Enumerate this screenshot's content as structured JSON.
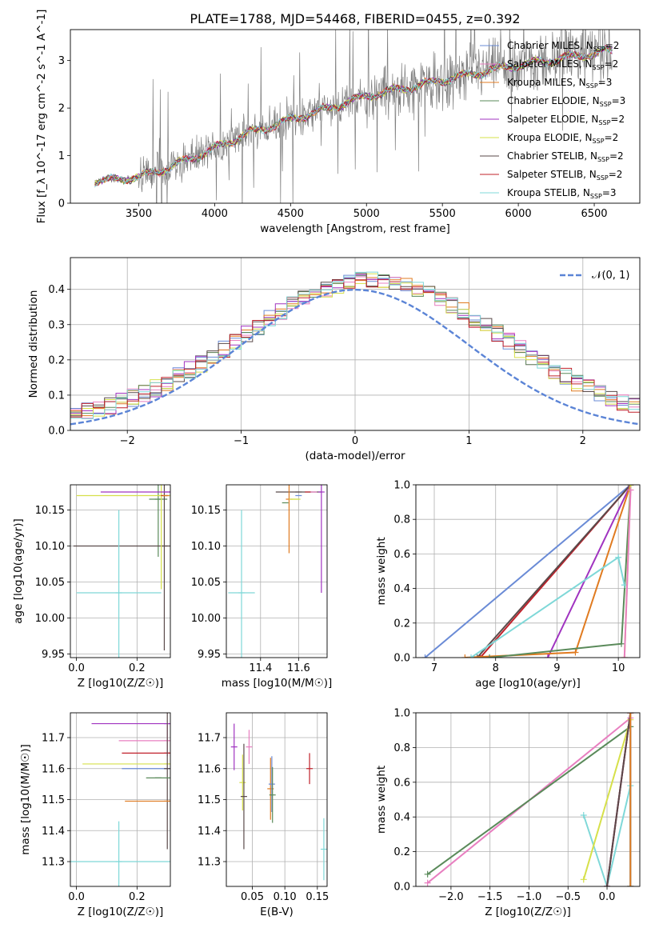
{
  "title": "PLATE=1788, MJD=54468, FIBERID=0455, z=0.392",
  "models": [
    {
      "name": "Chabrier MILES",
      "nssp": "2",
      "color": "#6a8bd6"
    },
    {
      "name": "Salpeter MILES",
      "nssp": "2",
      "color": "#e87fc0"
    },
    {
      "name": "Kroupa MILES",
      "nssp": "3",
      "color": "#e07b20"
    },
    {
      "name": "Chabrier ELODIE",
      "nssp": "3",
      "color": "#5a8a5a"
    },
    {
      "name": "Salpeter ELODIE",
      "nssp": "2",
      "color": "#a033c0"
    },
    {
      "name": "Kroupa ELODIE",
      "nssp": "2",
      "color": "#d6e04a"
    },
    {
      "name": "Chabrier STELIB",
      "nssp": "2",
      "color": "#5a4a4a"
    },
    {
      "name": "Salpeter STELIB",
      "nssp": "2",
      "color": "#c0202a"
    },
    {
      "name": "Kroupa STELIB",
      "nssp": "3",
      "color": "#7fd8d8"
    }
  ],
  "labels": {
    "spec_x": "wavelength [Angstrom, rest frame]",
    "spec_y": "Flux [f_λ 10^-17 erg cm^-2 s^-1 A^-1]",
    "res_x": "(data-model)/error",
    "res_y": "Normed distribution",
    "res_legend": "𝒩(0, 1)",
    "age_y": "age  [log10(age/yr)]",
    "z_x": "Z [log10(Z/Z☉)]",
    "mass_x": "mass [log10(M/M☉)]",
    "mass_y": "mass [log10(M/M☉)]",
    "ebv_x": "E(B-V)",
    "mw_y": "mass weight",
    "mw_age_x": "age  [log10(age/yr)]",
    "mw_z_x": "Z [log10(Z/Z☉)]"
  },
  "chart_data": [
    {
      "type": "line",
      "id": "spectrum",
      "xlim": [
        3050,
        6800
      ],
      "ylim": [
        0,
        3.65
      ],
      "xticks": [
        3500,
        4000,
        4500,
        5000,
        5500,
        6000,
        6500
      ],
      "yticks": [
        0,
        1,
        2,
        3
      ],
      "data_color": "#808080",
      "continuum": {
        "x": [
          3200,
          3500,
          3700,
          4000,
          4200,
          4500,
          4800,
          5000,
          5300,
          5600,
          5900,
          6200,
          6500,
          6600
        ],
        "y": [
          0.45,
          0.55,
          0.75,
          1.15,
          1.45,
          1.75,
          2.05,
          2.25,
          2.45,
          2.65,
          2.85,
          3.0,
          3.15,
          3.2
        ]
      }
    },
    {
      "type": "line",
      "id": "residuals",
      "xlim": [
        -2.5,
        2.5
      ],
      "ylim": [
        0,
        0.49
      ],
      "xticks": [
        -2,
        -1,
        0,
        1,
        2
      ],
      "yticks": [
        0.0,
        0.1,
        0.2,
        0.3,
        0.4
      ],
      "gaussian": {
        "mu": 0,
        "sigma": 1,
        "color": "#5b84d6"
      }
    },
    {
      "type": "scatter",
      "id": "age_vs_Z",
      "xlim": [
        -0.02,
        0.31
      ],
      "ylim": [
        9.945,
        10.185
      ],
      "xticks": [
        0.0,
        0.2
      ],
      "yticks": [
        9.95,
        10.0,
        10.05,
        10.1,
        10.15
      ],
      "points": [
        {
          "m": 0,
          "x": 0.3,
          "y": 10.17,
          "ex": 0.0,
          "ey": 0.0
        },
        {
          "m": 3,
          "x": 0.27,
          "y": 10.165,
          "ex": 0.03,
          "ey": 0.08
        },
        {
          "m": 6,
          "x": 0.29,
          "y": 10.1,
          "ex": 0.3,
          "ey": 0.145
        },
        {
          "m": 5,
          "x": 0.28,
          "y": 10.17,
          "ex": 0.28,
          "ey": 0.13
        },
        {
          "m": 4,
          "x": 0.3,
          "y": 10.175,
          "ex": 0.22,
          "ey": 0.0
        },
        {
          "m": 7,
          "x": 0.29,
          "y": 10.17,
          "ex": 0.0,
          "ey": 0.0
        },
        {
          "m": 2,
          "x": 0.295,
          "y": 10.17,
          "ex": 0.0,
          "ey": 0.0
        },
        {
          "m": 8,
          "x": 0.14,
          "y": 10.035,
          "ex": 0.14,
          "ey": 0.115
        }
      ]
    },
    {
      "type": "scatter",
      "id": "age_vs_mass",
      "xlim": [
        11.22,
        11.75
      ],
      "ylim": [
        9.945,
        10.185
      ],
      "xticks": [
        11.4,
        11.6
      ],
      "yticks": [
        9.95,
        10.0,
        10.05,
        10.1,
        10.15
      ],
      "points": [
        {
          "m": 6,
          "x": 11.6,
          "y": 10.175,
          "ex": 0.12,
          "ey": 0.0
        },
        {
          "m": 7,
          "x": 11.65,
          "y": 10.175,
          "ex": 0.0,
          "ey": 0.0
        },
        {
          "m": 2,
          "x": 11.55,
          "y": 10.165,
          "ex": 0.0,
          "ey": 0.075
        },
        {
          "m": 3,
          "x": 11.53,
          "y": 10.16,
          "ex": 0.0,
          "ey": 0.0
        },
        {
          "m": 5,
          "x": 11.58,
          "y": 10.165,
          "ex": 0.03,
          "ey": 0.0
        },
        {
          "m": 0,
          "x": 11.6,
          "y": 10.17,
          "ex": 0.0,
          "ey": 0.0
        },
        {
          "m": 4,
          "x": 11.72,
          "y": 10.175,
          "ex": 0.0,
          "ey": 0.14
        },
        {
          "m": 1,
          "x": 11.68,
          "y": 10.175,
          "ex": 0.0,
          "ey": 0.0
        },
        {
          "m": 8,
          "x": 11.3,
          "y": 10.035,
          "ex": 0.07,
          "ey": 0.115
        }
      ]
    },
    {
      "type": "line",
      "id": "mw_vs_age",
      "xlim": [
        6.7,
        10.35
      ],
      "ylim": [
        0,
        1.0
      ],
      "xticks": [
        7,
        8,
        9,
        10
      ],
      "yticks": [
        0.0,
        0.2,
        0.4,
        0.6,
        0.8,
        1.0
      ],
      "series": [
        {
          "m": 0,
          "x": [
            6.85,
            10.2
          ],
          "y": [
            0.0,
            1.0
          ]
        },
        {
          "m": 7,
          "x": [
            7.75,
            10.2
          ],
          "y": [
            0.0,
            1.0
          ]
        },
        {
          "m": 6,
          "x": [
            7.7,
            10.2
          ],
          "y": [
            0.0,
            1.0
          ]
        },
        {
          "m": 4,
          "x": [
            8.85,
            10.2
          ],
          "y": [
            0.0,
            1.0
          ]
        },
        {
          "m": 2,
          "x": [
            7.5,
            9.3,
            10.2
          ],
          "y": [
            0.0,
            0.03,
            1.0
          ]
        },
        {
          "m": 3,
          "x": [
            7.9,
            10.05,
            10.2
          ],
          "y": [
            0.0,
            0.08,
            1.0
          ]
        },
        {
          "m": 8,
          "x": [
            7.6,
            10.0,
            10.1
          ],
          "y": [
            0.0,
            0.58,
            0.42
          ]
        },
        {
          "m": 5,
          "x": [
            10.1,
            10.2
          ],
          "y": [
            0.0,
            1.0
          ]
        },
        {
          "m": 1,
          "x": [
            10.1,
            10.2
          ],
          "y": [
            0.0,
            0.97
          ]
        }
      ]
    },
    {
      "type": "scatter",
      "id": "mass_vs_Z",
      "xlim": [
        -0.02,
        0.31
      ],
      "ylim": [
        11.22,
        11.78
      ],
      "xticks": [
        0.0,
        0.2
      ],
      "yticks": [
        11.3,
        11.4,
        11.5,
        11.6,
        11.7
      ],
      "points": [
        {
          "m": 4,
          "x": 0.3,
          "y": 11.745,
          "ex": 0.25,
          "ey": 0.0
        },
        {
          "m": 1,
          "x": 0.3,
          "y": 11.69,
          "ex": 0.16,
          "ey": 0.05
        },
        {
          "m": 7,
          "x": 0.3,
          "y": 11.65,
          "ex": 0.15,
          "ey": 0.0
        },
        {
          "m": 5,
          "x": 0.3,
          "y": 11.615,
          "ex": 0.28,
          "ey": 0.0
        },
        {
          "m": 0,
          "x": 0.3,
          "y": 11.6,
          "ex": 0.15,
          "ey": 0.0
        },
        {
          "m": 6,
          "x": 0.3,
          "y": 11.6,
          "ex": 0.0,
          "ey": 0.26
        },
        {
          "m": 3,
          "x": 0.27,
          "y": 11.57,
          "ex": 0.04,
          "ey": 0.0
        },
        {
          "m": 2,
          "x": 0.3,
          "y": 11.495,
          "ex": 0.14,
          "ey": 0.0
        },
        {
          "m": 8,
          "x": 0.14,
          "y": 11.3,
          "ex": 0.17,
          "ey": 0.13
        }
      ]
    },
    {
      "type": "scatter",
      "id": "mass_vs_EBV",
      "xlim": [
        0.01,
        0.165
      ],
      "ylim": [
        11.22,
        11.78
      ],
      "xticks": [
        0.05,
        0.1,
        0.15
      ],
      "yticks": [
        11.3,
        11.4,
        11.5,
        11.6,
        11.7
      ],
      "points": [
        {
          "m": 4,
          "x": 0.022,
          "y": 11.67,
          "ex": 0.0,
          "ey": 0.075
        },
        {
          "m": 5,
          "x": 0.035,
          "y": 11.555,
          "ex": 0.0,
          "ey": 0.09
        },
        {
          "m": 6,
          "x": 0.037,
          "y": 11.51,
          "ex": 0.0,
          "ey": 0.17
        },
        {
          "m": 1,
          "x": 0.045,
          "y": 11.67,
          "ex": 0.0,
          "ey": 0.055
        },
        {
          "m": 2,
          "x": 0.078,
          "y": 11.535,
          "ex": 0.0,
          "ey": 0.1
        },
        {
          "m": 0,
          "x": 0.08,
          "y": 11.55,
          "ex": 0.0,
          "ey": 0.09
        },
        {
          "m": 3,
          "x": 0.081,
          "y": 11.515,
          "ex": 0.0,
          "ey": 0.09
        },
        {
          "m": 7,
          "x": 0.138,
          "y": 11.6,
          "ex": 0.0,
          "ey": 0.05
        },
        {
          "m": 8,
          "x": 0.16,
          "y": 11.34,
          "ex": 0.0,
          "ey": 0.1
        }
      ]
    },
    {
      "type": "line",
      "id": "mw_vs_Z",
      "xlim": [
        -2.45,
        0.42
      ],
      "ylim": [
        0,
        1.0
      ],
      "xticks": [
        -2.0,
        -1.5,
        -1.0,
        -0.5,
        0.0
      ],
      "yticks": [
        0.0,
        0.2,
        0.4,
        0.6,
        0.8,
        1.0
      ],
      "series": [
        {
          "m": 1,
          "x": [
            -2.3,
            0.3
          ],
          "y": [
            0.02,
            0.97
          ]
        },
        {
          "m": 3,
          "x": [
            -2.3,
            0.3,
            0.3
          ],
          "y": [
            0.07,
            0.92,
            0.0
          ]
        },
        {
          "m": 8,
          "x": [
            -0.3,
            0.0,
            0.3,
            0.3
          ],
          "y": [
            0.41,
            0.0,
            0.58,
            0.0
          ]
        },
        {
          "m": 5,
          "x": [
            -0.3,
            0.3
          ],
          "y": [
            0.04,
            0.96
          ]
        },
        {
          "m": 4,
          "x": [
            0.0,
            0.3
          ],
          "y": [
            0.0,
            1.0
          ]
        },
        {
          "m": 7,
          "x": [
            0.0,
            0.3
          ],
          "y": [
            0.0,
            1.0
          ]
        },
        {
          "m": 6,
          "x": [
            0.0,
            0.3
          ],
          "y": [
            0.0,
            1.0
          ]
        },
        {
          "m": 0,
          "x": [
            0.3,
            0.3
          ],
          "y": [
            0.0,
            1.0
          ]
        },
        {
          "m": 2,
          "x": [
            0.3,
            0.3
          ],
          "y": [
            0.0,
            1.0
          ]
        }
      ]
    }
  ]
}
